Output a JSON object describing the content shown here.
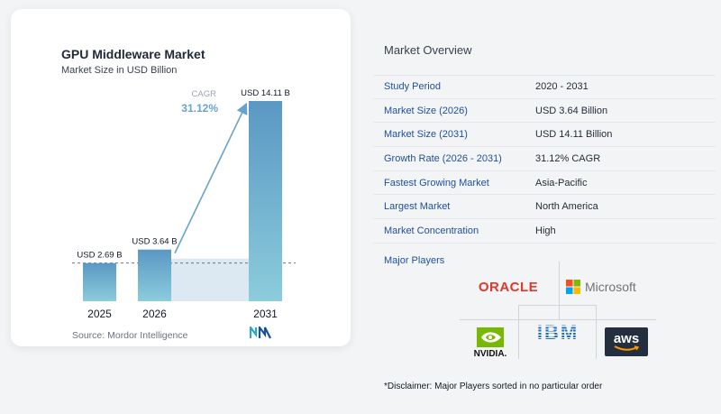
{
  "chart": {
    "title": "GPU Middleware Market",
    "subtitle": "Market Size in USD Billion",
    "source": "Source: Mordor Intelligence",
    "cagr_label": "CAGR",
    "cagr_value": "31.12%"
  },
  "chart_data": {
    "type": "bar",
    "title": "GPU Middleware Market",
    "subtitle": "Market Size in USD Billion",
    "categories": [
      "2025",
      "2026",
      "2031"
    ],
    "values": [
      2.69,
      3.64,
      14.11
    ],
    "data_labels": [
      "USD 2.69 B",
      "USD 3.64 B",
      "USD 14.11 B"
    ],
    "annotation": {
      "label": "CAGR",
      "value": "31.12%",
      "from": "2026",
      "to": "2031"
    },
    "grid": false,
    "legend": "none"
  },
  "colors": {
    "bar_fill": "#5d9fc7",
    "bar_fill_light": "#89c8da",
    "arrow": "#6aa3c9",
    "cagr_text": "#6aa3c9",
    "label_blue": "#1e4f9c",
    "shade": "#dde9f2"
  },
  "overview": {
    "title": "Market Overview",
    "rows": [
      {
        "label": "Study Period",
        "value": "2020 - 2031"
      },
      {
        "label": "Market Size (2026)",
        "value": "USD 3.64 Billion"
      },
      {
        "label": "Market Size (2031)",
        "value": "USD 14.11 Billion"
      },
      {
        "label": "Growth Rate (2026 - 2031)",
        "value": "31.12% CAGR"
      },
      {
        "label": "Fastest Growing Market",
        "value": "Asia-Pacific"
      },
      {
        "label": "Largest Market",
        "value": "North America"
      },
      {
        "label": "Market Concentration",
        "value": "High"
      }
    ],
    "players_title": "Major Players",
    "players": {
      "oracle": "ORACLE",
      "microsoft": "Microsoft",
      "nvidia": "NVIDIA.",
      "ibm": "IBM",
      "aws": "aws"
    },
    "disclaimer": "*Disclaimer: Major Players sorted in no particular order"
  },
  "icons": {
    "brand_logo": "mordor-intelligence-logo-icon",
    "nvidia_eye": "nvidia-eye-icon",
    "microsoft_grid": "microsoft-grid-icon",
    "aws_smile": "aws-smile-icon"
  }
}
